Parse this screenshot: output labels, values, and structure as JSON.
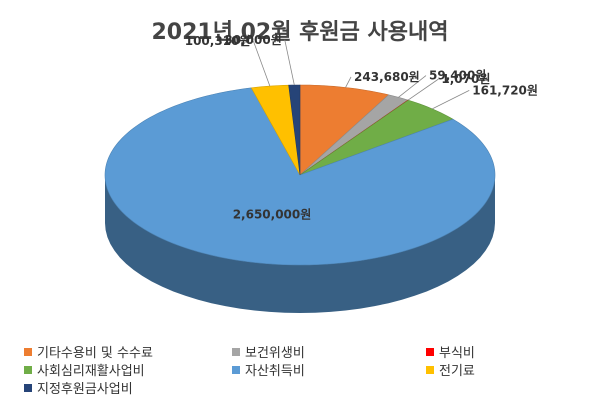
{
  "chart_data": {
    "type": "pie",
    "title": "2021년 02월 후원금 사용내역",
    "legend_position": "bottom",
    "slices": [
      {
        "name": "기타수용비 및 수수료",
        "value": 243680,
        "label": "243,680원",
        "color": "#ED7D31"
      },
      {
        "name": "보건위생비",
        "value": 59400,
        "label": "59,400원",
        "color": "#A5A5A5"
      },
      {
        "name": "부식비",
        "value": 1070,
        "label": "1,070원",
        "color": "#FF0000"
      },
      {
        "name": "사회심리재활사업비",
        "value": 161720,
        "label": "161,720원",
        "color": "#70AD47"
      },
      {
        "name": "자산취득비",
        "value": 2650000,
        "label": "2,650,000원",
        "color": "#5B9BD5"
      },
      {
        "name": "전기료",
        "value": 100310,
        "label": "100,310원",
        "color": "#FFC000"
      },
      {
        "name": "지정후원금사업비",
        "value": 30000,
        "label": "30,000원",
        "color": "#264478"
      }
    ]
  }
}
